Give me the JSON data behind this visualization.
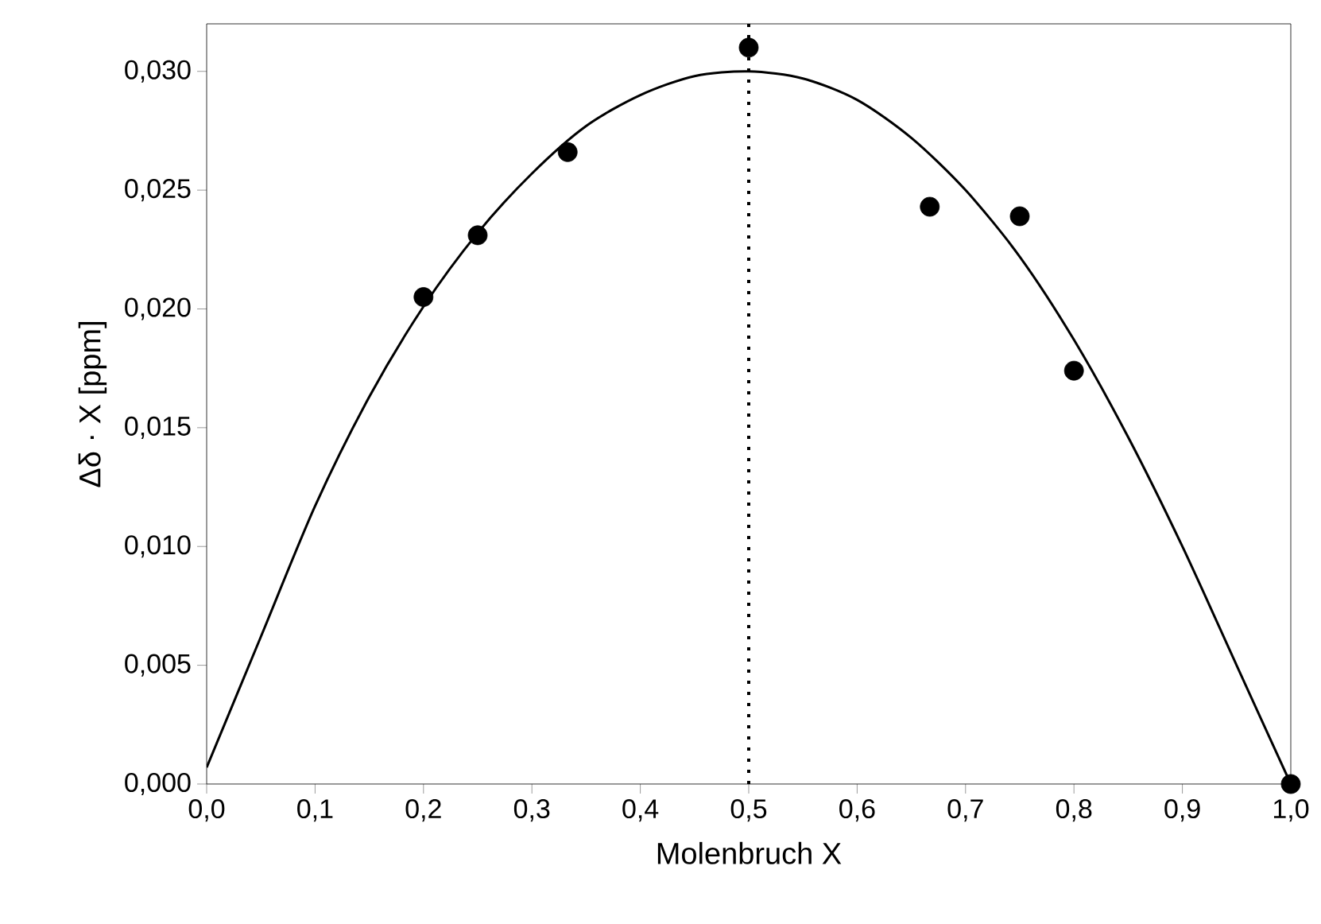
{
  "chart_data": {
    "type": "scatter",
    "xlabel": "Molenbruch X",
    "ylabel": "Δδ · X [ppm]",
    "xlim": [
      0,
      1
    ],
    "ylim": [
      0,
      0.032
    ],
    "xticks": [
      {
        "value": 0,
        "label": "0,0"
      },
      {
        "value": 0.1,
        "label": "0,1"
      },
      {
        "value": 0.2,
        "label": "0,2"
      },
      {
        "value": 0.3,
        "label": "0,3"
      },
      {
        "value": 0.4,
        "label": "0,4"
      },
      {
        "value": 0.5,
        "label": "0,5"
      },
      {
        "value": 0.6,
        "label": "0,6"
      },
      {
        "value": 0.7,
        "label": "0,7"
      },
      {
        "value": 0.8,
        "label": "0,8"
      },
      {
        "value": 0.9,
        "label": "0,9"
      },
      {
        "value": 1,
        "label": "1,0"
      }
    ],
    "yticks": [
      {
        "value": 0,
        "label": "0,000"
      },
      {
        "value": 0.005,
        "label": "0,005"
      },
      {
        "value": 0.01,
        "label": "0,010"
      },
      {
        "value": 0.015,
        "label": "0,015"
      },
      {
        "value": 0.02,
        "label": "0,020"
      },
      {
        "value": 0.025,
        "label": "0,025"
      },
      {
        "value": 0.03,
        "label": "0,030"
      }
    ],
    "ref_lines": [
      {
        "axis": "x",
        "value": 0.5,
        "line_style": "dotted",
        "color": "#000000"
      }
    ],
    "series": [
      {
        "color": "#000000",
        "x": [
          0.2,
          0.25,
          0.333,
          0.5,
          0.667,
          0.75,
          0.8,
          1.0
        ],
        "values": [
          0.0205,
          0.0231,
          0.0266,
          0.031,
          0.0243,
          0.0239,
          0.0174,
          0.0
        ]
      },
      {
        "type": "line",
        "color": "#000000",
        "line_style": "solid",
        "x": [
          0,
          0.05,
          0.1,
          0.15,
          0.2,
          0.25,
          0.3,
          0.35,
          0.4,
          0.45,
          0.5,
          0.55,
          0.6,
          0.65,
          0.7,
          0.75,
          0.8,
          0.85,
          0.9,
          0.95,
          1.0
        ],
        "values": [
          0.0007,
          0.0062,
          0.0117,
          0.0163,
          0.0201,
          0.0232,
          0.0257,
          0.0277,
          0.029,
          0.0298,
          0.03,
          0.0297,
          0.0288,
          0.0272,
          0.025,
          0.0222,
          0.0187,
          0.0146,
          0.01,
          0.005,
          0.0
        ]
      }
    ]
  }
}
